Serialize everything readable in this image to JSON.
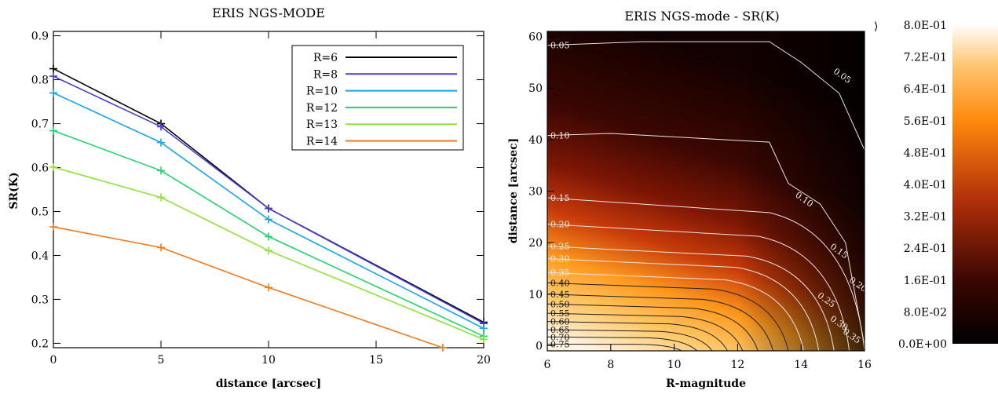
{
  "chart_data": [
    {
      "type": "line",
      "title": "ERIS NGS-MODE",
      "xlabel": "distance [arcsec]",
      "ylabel": "SR(K)",
      "xlim": [
        0,
        20
      ],
      "ylim": [
        0.19,
        0.91
      ],
      "xticks": [
        0,
        5,
        10,
        15,
        20
      ],
      "yticks": [
        0.2,
        0.3,
        0.4,
        0.5,
        0.6,
        0.7,
        0.8,
        0.9
      ],
      "legend_position": "top-right",
      "grid": false,
      "series": [
        {
          "name": "R=6",
          "color": "#000000",
          "x": [
            0,
            5,
            10,
            20
          ],
          "y": [
            0.825,
            0.7,
            0.507,
            0.248
          ]
        },
        {
          "name": "R=8",
          "color": "#4b3fd0",
          "x": [
            0,
            5,
            10,
            20
          ],
          "y": [
            0.808,
            0.693,
            0.507,
            0.245
          ]
        },
        {
          "name": "R=10",
          "color": "#19a4ee",
          "x": [
            0,
            5,
            10,
            20
          ],
          "y": [
            0.77,
            0.657,
            0.482,
            0.234
          ]
        },
        {
          "name": "R=12",
          "color": "#22d26a",
          "x": [
            0,
            5,
            10,
            20
          ],
          "y": [
            0.684,
            0.593,
            0.443,
            0.216
          ]
        },
        {
          "name": "R=13",
          "color": "#8ee23a",
          "x": [
            0,
            5,
            10,
            20
          ],
          "y": [
            0.601,
            0.532,
            0.411,
            0.209
          ]
        },
        {
          "name": "R=14",
          "color": "#f27a1e",
          "x": [
            0,
            5,
            10,
            18.1
          ],
          "y": [
            0.465,
            0.418,
            0.327,
            0.19
          ]
        }
      ]
    },
    {
      "type": "heatmap",
      "title": "ERIS NGS-mode - SR(K)",
      "xlabel": "R-magnitude",
      "ylabel": "distance [arcsec]",
      "xlim": [
        6,
        16
      ],
      "ylim": [
        -1,
        61
      ],
      "xticks": [
        6,
        8,
        10,
        12,
        14,
        16
      ],
      "yticks": [
        0,
        10,
        20,
        30,
        40,
        50,
        60
      ],
      "contour_levels": [
        0.05,
        0.1,
        0.15,
        0.2,
        0.25,
        0.3,
        0.35,
        0.4,
        0.45,
        0.5,
        0.55,
        0.6,
        0.65,
        0.7,
        0.75
      ],
      "contour_labels_left": [
        "0.05",
        "0.10",
        "0.15",
        "0.20",
        "0.25",
        "0.30",
        "0.35",
        "0.40",
        "0.45",
        "0.50",
        "0.55",
        "0.60",
        "0.65",
        "0.70",
        "0.75"
      ],
      "contour_labels_right": [
        "0.05",
        "0.10",
        "0.15",
        "0.20",
        "0.25",
        "0.30",
        "0.35"
      ],
      "colorbar": {
        "min": 0.0,
        "max": 0.8,
        "ticks": [
          "8.0E-01",
          "7.2E-01",
          "6.4E-01",
          "5.6E-01",
          "4.8E-01",
          "4.0E-01",
          "3.2E-01",
          "2.4E-01",
          "1.6E-01",
          "8.0E-02",
          "0.0E+00"
        ],
        "arrow": "⟩"
      }
    }
  ]
}
